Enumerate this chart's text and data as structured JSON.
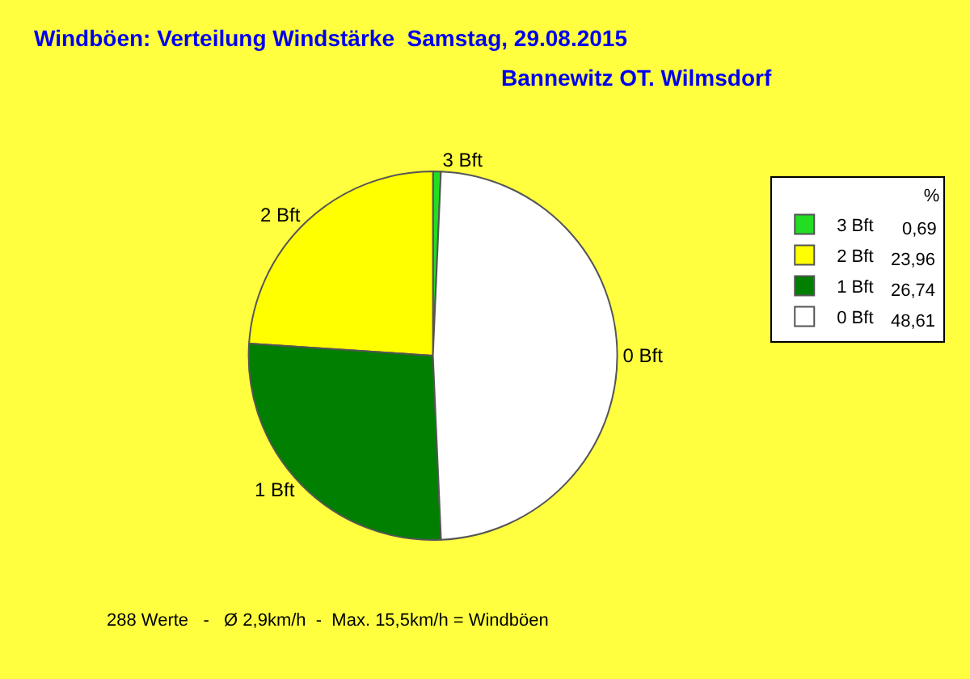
{
  "chart_data": {
    "type": "pie",
    "title": "Windböen: Verteilung Windstärke  Samstag, 29.08.2015",
    "subtitle": "Bannewitz OT. Wilmsdorf",
    "categories": [
      "3 Bft",
      "2 Bft",
      "1 Bft",
      "0 Bft"
    ],
    "values": [
      0.69,
      23.96,
      26.74,
      48.61
    ],
    "value_labels": [
      "0,69",
      "23,96",
      "26,74",
      "48,61"
    ],
    "colors": [
      "#22dd22",
      "#ffff00",
      "#007f00",
      "#ffffff"
    ],
    "legend": "top right",
    "legend_title": "%",
    "annotations": [
      "288 Werte   -   Ø 2,9km/h  -  Max. 15,5km/h = Windböen"
    ]
  }
}
